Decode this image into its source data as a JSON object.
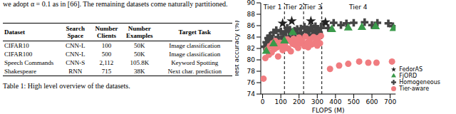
{
  "paper_text": "we adopt α = 0.1 as in [66]. The remaining datasets come naturally partitioned.",
  "table": {
    "columns": [
      "Dataset",
      "Search Space",
      "Number Clients",
      "Number Examples",
      "Target Task"
    ],
    "rows": [
      [
        "CIFAR10",
        "CNN-L",
        "100",
        "50K",
        "Image classification"
      ],
      [
        "CIFAR100",
        "CNN-L",
        "500",
        "50K",
        "Image classification"
      ],
      [
        "Speech Commands",
        "CNN-S",
        "2,112",
        "105.8K",
        "Keyword Spotting"
      ],
      [
        "Shakespeare",
        "RNN",
        "715",
        "38K",
        "Next char. prediction"
      ]
    ],
    "caption": "Table 1: High level overview of the datasets."
  },
  "chart_data": {
    "type": "scatter",
    "x_label": "FLOPS (M)",
    "y_label": "Test accuracy (%)",
    "xlim": [
      -10,
      730
    ],
    "ylim": [
      74,
      90
    ],
    "xticks": [
      0,
      100,
      200,
      300,
      400,
      500,
      600,
      700
    ],
    "yticks": [
      74,
      76,
      78,
      80,
      82,
      84,
      86,
      88,
      90
    ],
    "grid": false,
    "legend": "lower right",
    "tier_boundaries": [
      120,
      225,
      325
    ],
    "annotations": [
      {
        "text": "Tier 1",
        "x": 55,
        "y": 89.3
      },
      {
        "text": "Tier 2",
        "x": 172,
        "y": 89.3
      },
      {
        "text": "Tier 3",
        "x": 275,
        "y": 89.3
      },
      {
        "text": "Tier 4",
        "x": 525,
        "y": 89.3
      }
    ],
    "series": [
      {
        "name": "Homogeneous",
        "color": "#444444",
        "marker": "plus",
        "x": [
          10,
          20,
          30,
          40,
          45,
          55,
          60,
          70,
          75,
          85,
          90,
          100,
          105,
          115,
          125,
          130,
          135,
          145,
          150,
          160,
          165,
          175,
          180,
          190,
          195,
          205,
          210,
          220,
          230,
          240,
          245,
          255,
          265,
          275,
          285,
          290,
          300,
          310,
          320,
          335,
          360,
          390,
          430,
          460,
          500,
          560,
          600,
          630,
          690,
          715
        ],
        "values": [
          82.3,
          83.1,
          83.8,
          84.2,
          82.6,
          83.4,
          84.8,
          83.0,
          85.2,
          84.0,
          82.8,
          85.0,
          83.6,
          84.5,
          84.9,
          83.2,
          85.6,
          84.1,
          85.3,
          83.5,
          84.6,
          85.1,
          84.0,
          85.4,
          83.9,
          84.7,
          85.5,
          84.3,
          85.8,
          84.9,
          85.3,
          84.4,
          85.7,
          85.0,
          84.5,
          85.9,
          85.2,
          84.8,
          85.6,
          86.3,
          85.6,
          86.5,
          86.1,
          86.4,
          86.5,
          86.6,
          86.1,
          86.5,
          86.4,
          85.9
        ]
      },
      {
        "name": "Tier-aware",
        "color": "#f07c80",
        "marker": "circle",
        "x": [
          5,
          15,
          25,
          35,
          40,
          50,
          55,
          65,
          70,
          80,
          85,
          95,
          100,
          110,
          120,
          125,
          135,
          140,
          150,
          155,
          165,
          170,
          180,
          185,
          195,
          200,
          210,
          215,
          230,
          235,
          245,
          250,
          260,
          270,
          280,
          290,
          300,
          305,
          315,
          320,
          370,
          420,
          470,
          530,
          580,
          625,
          710
        ],
        "values": [
          76.7,
          80.3,
          81.8,
          80.9,
          82.4,
          81.3,
          82.9,
          81.9,
          83.3,
          82.2,
          80.6,
          83.0,
          82.5,
          81.7,
          83.1,
          82.3,
          83.6,
          82.0,
          83.3,
          81.5,
          82.8,
          83.7,
          82.6,
          83.2,
          82.1,
          83.9,
          82.9,
          83.4,
          82.4,
          84.1,
          83.0,
          82.2,
          83.6,
          82.7,
          84.0,
          83.1,
          82.5,
          83.8,
          82.9,
          84.2,
          78.4,
          79.0,
          79.3,
          79.7,
          79.5,
          79.5,
          79.7
        ]
      },
      {
        "name": "FjORD",
        "color": "#3a9a4a",
        "marker": "triangle",
        "x": [
          20,
          60,
          120,
          165,
          380,
          470,
          545,
          620,
          720
        ],
        "values": [
          81.5,
          82.8,
          83.3,
          84.8,
          85.3,
          85.6,
          85.7,
          85.8,
          85.5
        ]
      },
      {
        "name": "FedorAS",
        "color": "#222222",
        "marker": "star",
        "x": [
          110,
          160,
          265,
          345
        ],
        "values": [
          86.4,
          86.8,
          86.8,
          86.6
        ]
      }
    ]
  }
}
